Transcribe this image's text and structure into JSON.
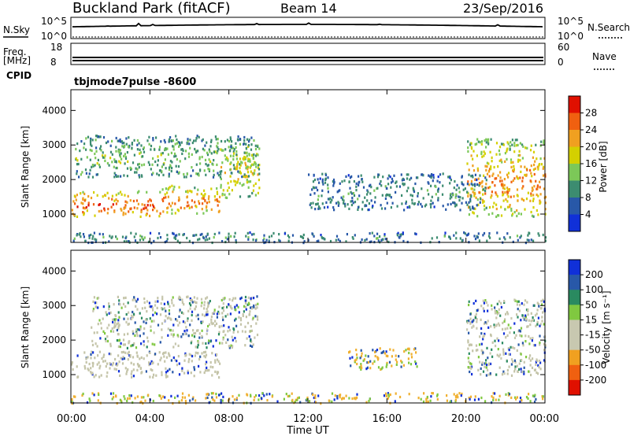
{
  "header": {
    "title": "Buckland Park (fitACF)",
    "beam": "Beam 14",
    "date": "23/Sep/2016"
  },
  "strip_nsky": {
    "left_label": "N.Sky",
    "right_label": "N.Search",
    "tick_top_left": "10^5",
    "tick_bottom_left": "10^0",
    "tick_top_right": "10^5",
    "tick_bottom_right": "10^0"
  },
  "strip_freq": {
    "left_label_1": "Freq.",
    "left_label_2": "[MHz]",
    "right_label": "Nave",
    "tick_top_left": "18",
    "tick_bottom_left": "8",
    "tick_top_right": "60",
    "tick_bottom_right": "0",
    "cpid_label": "CPID",
    "mode_label": "tbjmode7pulse -8600"
  },
  "colors": {
    "power_scale": [
      "#1030d8",
      "#2858a8",
      "#3c8c70",
      "#7cc858",
      "#d4d000",
      "#f0a020",
      "#f06010",
      "#e01000"
    ],
    "velocity_scale": [
      "#e01000",
      "#f06010",
      "#f0a020",
      "#c8c8b0",
      "#c8c8b0",
      "#80c840",
      "#2a8a60",
      "#2858a8",
      "#1030d8"
    ]
  },
  "chart_data": [
    {
      "type": "heatmap",
      "panel": "power",
      "ylabel": "Slant Range [km]",
      "yticks": [
        "1000",
        "2000",
        "3000",
        "4000"
      ],
      "ylim": [
        180,
        4600
      ],
      "colorbar_label": "Power [dB]",
      "colorbar_ticks": [
        "4",
        "8",
        "12",
        "16",
        "20",
        "24",
        "28"
      ],
      "colorbar_range": [
        0,
        32
      ],
      "regions": [
        {
          "t0": 0,
          "t1": 4.5,
          "r0": 950,
          "r1": 1700,
          "peak": 26
        },
        {
          "t0": 4.5,
          "t1": 7.5,
          "r0": 1050,
          "r1": 1850,
          "peak": 24
        },
        {
          "t0": 7.5,
          "t1": 9.5,
          "r0": 1500,
          "r1": 3200,
          "peak": 18
        },
        {
          "t0": 0.2,
          "t1": 9.5,
          "r0": 2100,
          "r1": 3300,
          "peak": 12
        },
        {
          "t0": 20,
          "t1": 24,
          "r0": 950,
          "r1": 3200,
          "peak": 22
        },
        {
          "t0": 12,
          "t1": 21,
          "r0": 1150,
          "r1": 2200,
          "peak": 8
        },
        {
          "t0": 0,
          "t1": 24,
          "r0": 200,
          "r1": 500,
          "peak": 8
        }
      ]
    },
    {
      "type": "heatmap",
      "panel": "velocity",
      "ylabel": "Slant Range [km]",
      "yticks": [
        "1000",
        "2000",
        "3000",
        "4000"
      ],
      "ylim": [
        180,
        4600
      ],
      "colorbar_label": "Velocity [m s^-1]",
      "colorbar_ticks": [
        "200",
        "100",
        "50",
        "15",
        "-15",
        "-50",
        "-100",
        "-200"
      ],
      "regions": [
        {
          "t0": 0,
          "t1": 7.5,
          "r0": 950,
          "r1": 1700,
          "class": "low"
        },
        {
          "t0": 1,
          "t1": 9.5,
          "r0": 1800,
          "r1": 3300,
          "class": "mixed"
        },
        {
          "t0": 20,
          "t1": 24,
          "r0": 1000,
          "r1": 3200,
          "class": "mixed"
        },
        {
          "t0": 14,
          "t1": 17.5,
          "r0": 1150,
          "r1": 1800,
          "class": "positive"
        },
        {
          "t0": 0,
          "t1": 24,
          "r0": 200,
          "r1": 500,
          "class": "positive"
        }
      ]
    }
  ],
  "time_axis": {
    "xlabel": "Time UT",
    "xticks": [
      "00:00",
      "04:00",
      "08:00",
      "12:00",
      "16:00",
      "20:00",
      "00:00"
    ],
    "xlim": [
      0,
      24
    ]
  }
}
